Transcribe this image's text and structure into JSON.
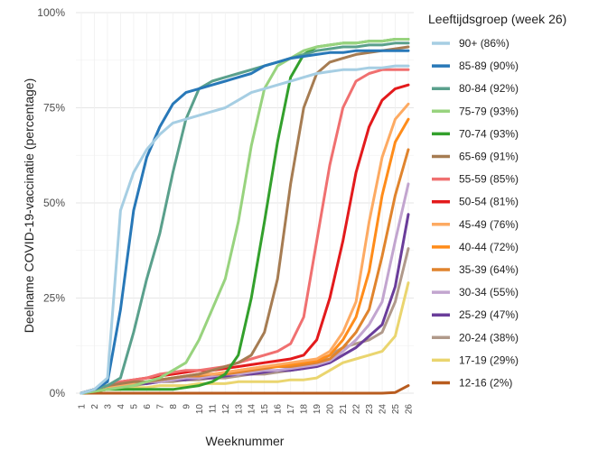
{
  "chart_data": {
    "type": "line",
    "xlabel": "Weeknummer",
    "ylabel": "Deelname COVID-19-vaccinatie (percentage)",
    "x": [
      1,
      2,
      3,
      4,
      5,
      6,
      7,
      8,
      9,
      10,
      11,
      12,
      13,
      14,
      15,
      16,
      17,
      18,
      19,
      20,
      21,
      22,
      23,
      24,
      25,
      26
    ],
    "x_tick_labels": [
      "1",
      "2",
      "3",
      "4",
      "5",
      "6",
      "7",
      "8",
      "9",
      "10",
      "11",
      "12",
      "13",
      "14",
      "15",
      "16",
      "17",
      "18",
      "19",
      "20",
      "21",
      "22",
      "23",
      "24",
      "25",
      "26"
    ],
    "y_tick_labels": [
      "0%",
      "25%",
      "50%",
      "75%",
      "100%"
    ],
    "ylim": [
      0,
      100
    ],
    "grid": true,
    "legend": {
      "title": "Leeftijdsgroep (week 26)",
      "position": "right"
    },
    "series": [
      {
        "name": "90+ (86%)",
        "color": "#a6cee3",
        "values": [
          0,
          1,
          4,
          48,
          58,
          64,
          68,
          71,
          72,
          73,
          74,
          75,
          77,
          79,
          80,
          81,
          82,
          83,
          84,
          84.5,
          85,
          85,
          85.5,
          85.5,
          86,
          86
        ]
      },
      {
        "name": "85-89 (90%)",
        "color": "#2878b8",
        "values": [
          0,
          1,
          3,
          22,
          48,
          62,
          70,
          76,
          79,
          80,
          81,
          82,
          83,
          84,
          86,
          87,
          88,
          88.5,
          89,
          89.5,
          89.5,
          90,
          90,
          90,
          90,
          90
        ]
      },
      {
        "name": "80-84 (92%)",
        "color": "#5aa08c",
        "values": [
          0,
          1,
          2,
          4,
          16,
          30,
          42,
          58,
          72,
          80,
          82,
          83,
          84,
          85,
          86,
          87,
          88,
          89,
          90,
          90.5,
          91,
          91,
          91.5,
          91.5,
          92,
          92
        ]
      },
      {
        "name": "75-79 (93%)",
        "color": "#98d37e",
        "values": [
          0,
          0.5,
          1,
          1.5,
          2,
          3,
          4,
          6,
          8,
          14,
          22,
          30,
          45,
          65,
          80,
          86,
          88,
          90,
          91,
          91.5,
          92,
          92,
          92.5,
          92.5,
          93,
          93
        ]
      },
      {
        "name": "70-74 (93%)",
        "color": "#33a02c",
        "values": [
          0,
          0.5,
          1,
          1,
          1,
          1,
          1,
          1,
          1.5,
          2,
          3,
          5,
          10,
          25,
          45,
          66,
          83,
          89,
          91,
          91.5,
          92,
          92,
          92.5,
          92.5,
          93,
          93
        ]
      },
      {
        "name": "65-69 (91%)",
        "color": "#a67c52",
        "values": [
          0,
          1,
          2,
          2.5,
          3,
          3,
          3.5,
          4,
          4.5,
          5,
          6,
          7,
          8,
          10,
          16,
          30,
          55,
          75,
          84,
          87,
          88,
          89,
          89.5,
          90,
          90.5,
          91
        ]
      },
      {
        "name": "55-59 (85%)",
        "color": "#f07070",
        "values": [
          0,
          1,
          2,
          3,
          3.5,
          4,
          5,
          5.5,
          6,
          6,
          6.5,
          7,
          8,
          9,
          10,
          11,
          13,
          20,
          40,
          60,
          75,
          82,
          84,
          85,
          85,
          85
        ]
      },
      {
        "name": "50-54 (81%)",
        "color": "#e31a1c",
        "values": [
          0,
          1,
          2,
          3,
          3.5,
          4,
          4.5,
          5,
          5.5,
          6,
          6,
          6.5,
          7,
          7.5,
          8,
          8.5,
          9,
          10,
          14,
          25,
          40,
          58,
          70,
          77,
          80,
          81
        ]
      },
      {
        "name": "45-49 (76%)",
        "color": "#fdaa62",
        "values": [
          0,
          1,
          1.5,
          2,
          2.5,
          3,
          3.5,
          4,
          4.5,
          5,
          5,
          5.5,
          6,
          6.5,
          7,
          7.5,
          8,
          8.5,
          9,
          11,
          16,
          24,
          45,
          62,
          72,
          76
        ]
      },
      {
        "name": "40-44 (72%)",
        "color": "#ff8c1a",
        "values": [
          0,
          1,
          1.5,
          2,
          2.5,
          3,
          3.5,
          4,
          4.5,
          5,
          5,
          5.5,
          6,
          6.5,
          7,
          7,
          7.5,
          8,
          8.5,
          10,
          14,
          20,
          32,
          52,
          66,
          72
        ]
      },
      {
        "name": "35-39 (64%)",
        "color": "#e0842d",
        "values": [
          0,
          1,
          1.5,
          2,
          2.5,
          3,
          3.5,
          4,
          4.5,
          4.5,
          5,
          5,
          5.5,
          6,
          6.5,
          7,
          7,
          7.5,
          8,
          9,
          12,
          16,
          22,
          36,
          52,
          64
        ]
      },
      {
        "name": "30-34 (55%)",
        "color": "#c2a5cf",
        "values": [
          0,
          1,
          1.5,
          2,
          2.5,
          3,
          3,
          3.5,
          4,
          4,
          4.5,
          5,
          5,
          5.5,
          6,
          6,
          6.5,
          7,
          7.5,
          8.5,
          11,
          14,
          18,
          24,
          40,
          55
        ]
      },
      {
        "name": "25-29 (47%)",
        "color": "#6a3d9a",
        "values": [
          0,
          1,
          1.5,
          2,
          2.5,
          2.5,
          3,
          3.5,
          3.5,
          4,
          4,
          4.5,
          5,
          5,
          5.5,
          6,
          6,
          6.5,
          7,
          8,
          10,
          12,
          15,
          18,
          28,
          47
        ]
      },
      {
        "name": "20-24 (38%)",
        "color": "#b0998a",
        "values": [
          0,
          1,
          1.5,
          2,
          2,
          2.5,
          3,
          3,
          3.5,
          3.5,
          4,
          4,
          4.5,
          5,
          5,
          5.5,
          6,
          6.5,
          8,
          10,
          12,
          13,
          14,
          16,
          24,
          38
        ]
      },
      {
        "name": "17-19 (29%)",
        "color": "#ead56f",
        "values": [
          0,
          0.5,
          1,
          1,
          1.5,
          1.5,
          2,
          2,
          2,
          2.5,
          2.5,
          2.5,
          3,
          3,
          3,
          3,
          3.5,
          3.5,
          4,
          6,
          8,
          9,
          10,
          11,
          15,
          29
        ]
      },
      {
        "name": "12-16 (2%)",
        "color": "#b85c1f",
        "values": [
          0,
          0,
          0,
          0,
          0,
          0,
          0,
          0,
          0,
          0,
          0,
          0,
          0,
          0,
          0,
          0,
          0,
          0,
          0,
          0,
          0,
          0,
          0,
          0,
          0.2,
          2
        ]
      }
    ]
  }
}
